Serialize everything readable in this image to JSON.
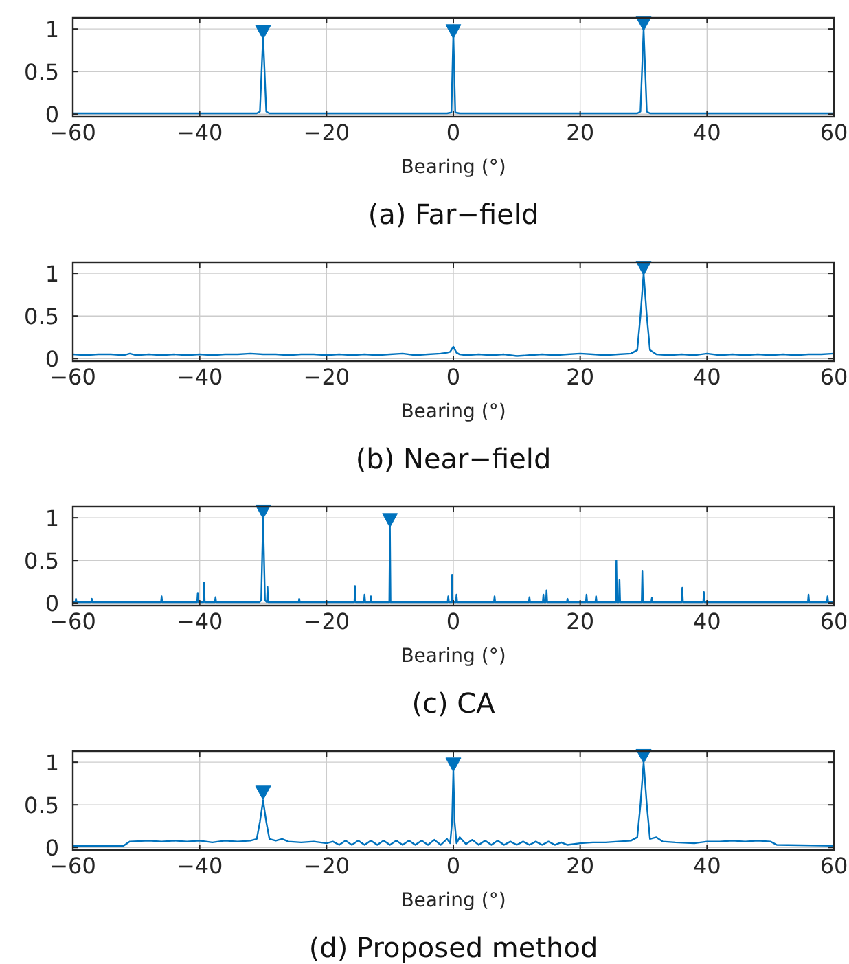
{
  "chart_data": [
    {
      "type": "line",
      "title": "(a) Far−field",
      "xlabel": "Bearing (°)",
      "xlim": [
        -60,
        60
      ],
      "ylim": [
        -0.03,
        1.13
      ],
      "xticks": [
        {
          "value": -60,
          "label": "−60"
        },
        {
          "value": -40,
          "label": "−40"
        },
        {
          "value": -20,
          "label": "−20"
        },
        0,
        20,
        40,
        60
      ],
      "yticks": [
        0,
        0.5,
        1
      ],
      "grid": true,
      "series": [
        {
          "type": "line",
          "color": "#0072bd",
          "x": [
            -60,
            -31,
            -30.5,
            -30,
            -29.5,
            -29,
            -1,
            -0.3,
            0,
            0.3,
            1,
            29,
            29.5,
            30,
            30.5,
            31,
            60
          ],
          "values": [
            0.01,
            0.01,
            0.03,
            0.92,
            0.03,
            0.01,
            0.01,
            0.02,
            0.95,
            0.02,
            0.01,
            0.01,
            0.03,
            1.0,
            0.03,
            0.01,
            0.01
          ]
        },
        {
          "type": "scatter",
          "marker": "triangle",
          "color": "#0072bd",
          "x": [
            -30,
            0,
            30
          ],
          "values": [
            0.96,
            0.97,
            1.06
          ]
        }
      ]
    },
    {
      "type": "line",
      "title": "(b) Near−field",
      "xlabel": "Bearing (°)",
      "xlim": [
        -60,
        60
      ],
      "ylim": [
        -0.03,
        1.13
      ],
      "xticks": [
        {
          "value": -60,
          "label": "−60"
        },
        {
          "value": -40,
          "label": "−40"
        },
        {
          "value": -20,
          "label": "−20"
        },
        0,
        20,
        40,
        60
      ],
      "yticks": [
        0,
        0.5,
        1
      ],
      "grid": true,
      "series": [
        {
          "type": "line",
          "color": "#0072bd",
          "x": [
            -60,
            -58,
            -56,
            -54,
            -52,
            -51,
            -50,
            -48,
            -46,
            -44,
            -42,
            -40,
            -38,
            -36,
            -34,
            -32,
            -30,
            -28,
            -26,
            -24,
            -22,
            -20,
            -18,
            -16,
            -14,
            -12,
            -10,
            -8,
            -6,
            -4,
            -2,
            -1,
            -0.5,
            0,
            0.5,
            1,
            2,
            4,
            6,
            8,
            10,
            12,
            14,
            16,
            18,
            20,
            22,
            24,
            26,
            28,
            29,
            29.5,
            30,
            30.5,
            31,
            32,
            34,
            36,
            38,
            40,
            42,
            44,
            46,
            48,
            50,
            52,
            54,
            56,
            58,
            60
          ],
          "values": [
            0.05,
            0.04,
            0.05,
            0.05,
            0.04,
            0.06,
            0.04,
            0.05,
            0.04,
            0.05,
            0.04,
            0.05,
            0.04,
            0.05,
            0.05,
            0.06,
            0.05,
            0.05,
            0.04,
            0.05,
            0.05,
            0.04,
            0.05,
            0.04,
            0.05,
            0.04,
            0.05,
            0.06,
            0.04,
            0.05,
            0.06,
            0.07,
            0.08,
            0.14,
            0.07,
            0.05,
            0.04,
            0.05,
            0.04,
            0.05,
            0.03,
            0.04,
            0.05,
            0.04,
            0.05,
            0.06,
            0.05,
            0.04,
            0.05,
            0.06,
            0.1,
            0.5,
            1.0,
            0.5,
            0.1,
            0.05,
            0.04,
            0.05,
            0.04,
            0.06,
            0.04,
            0.05,
            0.04,
            0.05,
            0.04,
            0.05,
            0.04,
            0.05,
            0.05,
            0.06
          ]
        },
        {
          "type": "scatter",
          "marker": "triangle",
          "color": "#0072bd",
          "x": [
            30
          ],
          "values": [
            1.06
          ]
        }
      ]
    },
    {
      "type": "line",
      "title": "(c) CA",
      "xlabel": "Bearing (°)",
      "xlim": [
        -60,
        60
      ],
      "ylim": [
        -0.03,
        1.13
      ],
      "xticks": [
        {
          "value": -60,
          "label": "−60"
        },
        {
          "value": -40,
          "label": "−40"
        },
        {
          "value": -20,
          "label": "−20"
        },
        0,
        20,
        40,
        60
      ],
      "yticks": [
        0,
        0.5,
        1
      ],
      "grid": true,
      "series": [
        {
          "type": "line",
          "color": "#0072bd",
          "x": [
            -60,
            -59.6,
            -59.5,
            -59.4,
            -57.1,
            -57,
            -56.9,
            -46.1,
            -46,
            -45.9,
            -40.4,
            -40.3,
            -40.2,
            -39.4,
            -39.3,
            -39.2,
            -37.6,
            -37.5,
            -37.4,
            -30.6,
            -30.3,
            -30,
            -29.7,
            -29.4,
            -29.3,
            -29.2,
            -24.4,
            -24.3,
            -24.2,
            -15.6,
            -15.5,
            -15.4,
            -14.1,
            -14,
            -13.9,
            -13.1,
            -13,
            -12.9,
            -10.1,
            -10,
            -9.9,
            -0.9,
            -0.8,
            -0.7,
            -0.3,
            -0.2,
            -0.1,
            0.4,
            0.5,
            0.6,
            6.4,
            6.5,
            6.6,
            11.9,
            12,
            12.1,
            14.1,
            14.2,
            14.3,
            14.6,
            14.7,
            14.8,
            17.9,
            18,
            18.1,
            20.9,
            21,
            21.1,
            22.4,
            22.5,
            22.6,
            25.6,
            25.7,
            25.8,
            26.1,
            26.2,
            26.3,
            29.7,
            29.8,
            29.9,
            31.2,
            31.3,
            31.4,
            36,
            36.1,
            36.2,
            39.4,
            39.5,
            39.6,
            55.9,
            56,
            56.1,
            58.9,
            59,
            59.1,
            60
          ],
          "values": [
            0.01,
            0.01,
            0.05,
            0.01,
            0.01,
            0.05,
            0.01,
            0.01,
            0.08,
            0.01,
            0.01,
            0.12,
            0.01,
            0.01,
            0.24,
            0.01,
            0.01,
            0.07,
            0.01,
            0.01,
            0.03,
            1.0,
            0.03,
            0.01,
            0.19,
            0.01,
            0.01,
            0.05,
            0.01,
            0.01,
            0.2,
            0.01,
            0.01,
            0.1,
            0.01,
            0.01,
            0.08,
            0.01,
            0.01,
            0.9,
            0.01,
            0.01,
            0.08,
            0.01,
            0.01,
            0.33,
            0.01,
            0.01,
            0.1,
            0.01,
            0.01,
            0.08,
            0.01,
            0.01,
            0.07,
            0.01,
            0.01,
            0.1,
            0.01,
            0.01,
            0.15,
            0.01,
            0.01,
            0.05,
            0.01,
            0.01,
            0.1,
            0.01,
            0.01,
            0.08,
            0.01,
            0.01,
            0.5,
            0.01,
            0.01,
            0.27,
            0.01,
            0.01,
            0.38,
            0.01,
            0.01,
            0.06,
            0.01,
            0.01,
            0.18,
            0.01,
            0.01,
            0.13,
            0.01,
            0.01,
            0.1,
            0.01,
            0.01,
            0.08,
            0.01,
            0.01
          ]
        },
        {
          "type": "scatter",
          "marker": "triangle",
          "color": "#0072bd",
          "x": [
            -30,
            -10
          ],
          "values": [
            1.07,
            0.97
          ]
        }
      ]
    },
    {
      "type": "line",
      "title": "(d) Proposed method",
      "xlabel": "Bearing (°)",
      "xlim": [
        -60,
        60
      ],
      "ylim": [
        -0.03,
        1.13
      ],
      "xticks": [
        {
          "value": -60,
          "label": "−60"
        },
        {
          "value": -40,
          "label": "−40"
        },
        {
          "value": -20,
          "label": "−20"
        },
        0,
        20,
        40,
        60
      ],
      "yticks": [
        0,
        0.5,
        1
      ],
      "grid": true,
      "series": [
        {
          "type": "line",
          "color": "#0072bd",
          "x": [
            -60,
            -52,
            -51,
            -48,
            -46,
            -44,
            -42,
            -40,
            -38,
            -36,
            -34,
            -32,
            -31,
            -30.5,
            -30,
            -29.5,
            -29,
            -28,
            -27,
            -26,
            -24,
            -22,
            -20,
            -19,
            -18,
            -17,
            -16,
            -15,
            -14,
            -13,
            -12,
            -11,
            -10,
            -9,
            -8,
            -7,
            -6,
            -5,
            -4,
            -3,
            -2,
            -1,
            -0.5,
            -0.2,
            0,
            0.2,
            0.5,
            1,
            2,
            3,
            4,
            5,
            6,
            7,
            8,
            9,
            10,
            11,
            12,
            13,
            14,
            15,
            16,
            17,
            18,
            20,
            22,
            24,
            26,
            28,
            29,
            29.5,
            30,
            30.5,
            31,
            32,
            33,
            35,
            38,
            40,
            42,
            44,
            46,
            48,
            50,
            51,
            60
          ],
          "values": [
            0.02,
            0.02,
            0.07,
            0.08,
            0.07,
            0.08,
            0.07,
            0.08,
            0.06,
            0.08,
            0.07,
            0.08,
            0.1,
            0.3,
            0.55,
            0.3,
            0.1,
            0.08,
            0.1,
            0.07,
            0.06,
            0.07,
            0.05,
            0.07,
            0.03,
            0.08,
            0.03,
            0.08,
            0.03,
            0.08,
            0.03,
            0.08,
            0.03,
            0.08,
            0.03,
            0.08,
            0.03,
            0.08,
            0.03,
            0.09,
            0.03,
            0.1,
            0.05,
            0.3,
            0.9,
            0.3,
            0.05,
            0.12,
            0.04,
            0.09,
            0.03,
            0.08,
            0.03,
            0.08,
            0.03,
            0.07,
            0.03,
            0.07,
            0.03,
            0.07,
            0.03,
            0.07,
            0.03,
            0.06,
            0.03,
            0.05,
            0.06,
            0.06,
            0.07,
            0.08,
            0.12,
            0.5,
            1.0,
            0.5,
            0.1,
            0.12,
            0.07,
            0.06,
            0.05,
            0.07,
            0.07,
            0.08,
            0.07,
            0.08,
            0.07,
            0.03,
            0.02
          ]
        },
        {
          "type": "scatter",
          "marker": "triangle",
          "color": "#0072bd",
          "x": [
            -30,
            0,
            30
          ],
          "values": [
            0.64,
            0.97,
            1.07
          ]
        }
      ]
    }
  ]
}
